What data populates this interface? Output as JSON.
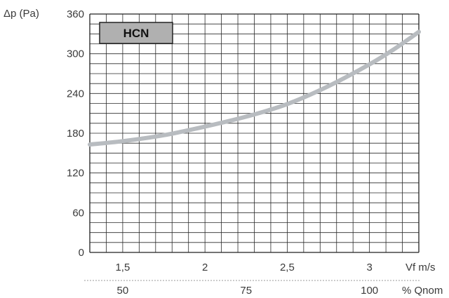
{
  "chart_data": {
    "type": "line",
    "title": "HCN",
    "ylabel": "Δp (Pa)",
    "xlabel": "Vf m/s",
    "x2label": "% Qnom",
    "ylim": [
      0,
      360
    ],
    "xlim": [
      1.3,
      3.3
    ],
    "yticks": [
      0,
      60,
      120,
      180,
      240,
      300,
      360
    ],
    "xticks": [
      {
        "label": "1,5",
        "value": 1.5
      },
      {
        "label": "2",
        "value": 2.0
      },
      {
        "label": "2,5",
        "value": 2.5
      },
      {
        "label": "3",
        "value": 3.0
      }
    ],
    "x2ticks": [
      {
        "label": "50",
        "value": 1.5
      },
      {
        "label": "75",
        "value": 2.25
      },
      {
        "label": "100",
        "value": 3.0
      }
    ],
    "grid": true,
    "series": [
      {
        "x": [
          1.3,
          1.5,
          1.75,
          2.0,
          2.25,
          2.5,
          2.75,
          3.0,
          3.15,
          3.3
        ],
        "y": [
          163,
          168,
          177,
          190,
          205,
          224,
          251,
          284,
          307,
          333
        ]
      }
    ]
  },
  "colors": {
    "grid": "#2a2a2a",
    "curve": "#b8bcc0",
    "badge_fill": "#b0b0b0",
    "frame": "#222222"
  }
}
